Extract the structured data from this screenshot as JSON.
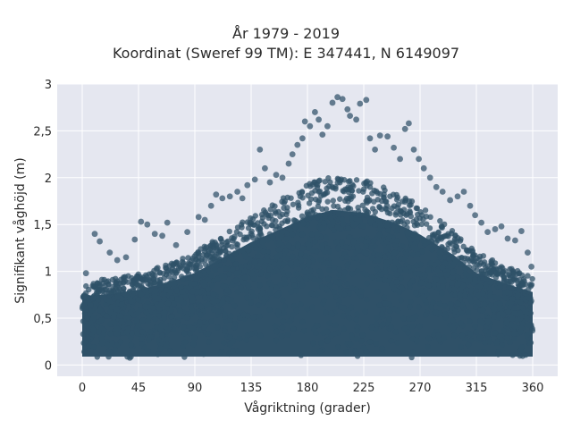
{
  "chart_data": {
    "type": "scatter",
    "title": "År 1979 - 2019",
    "subtitle": "Koordinat (Sweref 99 TM): E 347441, N 6149097",
    "xlabel": "Vågriktning (grader)",
    "ylabel": "Signifikant våghöjd (m)",
    "xlim": [
      -20,
      380
    ],
    "ylim": [
      -0.12,
      3.0
    ],
    "grid": true,
    "marker_color": "#2f5168",
    "background_color": "#e5e7f0",
    "x_ticks": [
      {
        "value": 0,
        "label": "0"
      },
      {
        "value": 45,
        "label": "45"
      },
      {
        "value": 90,
        "label": "90"
      },
      {
        "value": 135,
        "label": "135"
      },
      {
        "value": 180,
        "label": "180"
      },
      {
        "value": 225,
        "label": "225"
      },
      {
        "value": 270,
        "label": "270"
      },
      {
        "value": 315,
        "label": "315"
      },
      {
        "value": 360,
        "label": "360"
      }
    ],
    "y_ticks": [
      {
        "value": 0,
        "label": "0"
      },
      {
        "value": 0.5,
        "label": "0,5"
      },
      {
        "value": 1,
        "label": "1"
      },
      {
        "value": 1.5,
        "label": "1,5"
      },
      {
        "value": 2,
        "label": "2"
      },
      {
        "value": 2.5,
        "label": "2,5"
      },
      {
        "value": 3,
        "label": "3"
      }
    ],
    "envelope": {
      "description_points_x": [
        0,
        20,
        45,
        70,
        90,
        115,
        135,
        160,
        180,
        200,
        225,
        250,
        270,
        295,
        315,
        340,
        360
      ],
      "upper_dense_y": [
        0.9,
        0.92,
        0.98,
        1.08,
        1.2,
        1.42,
        1.6,
        1.78,
        1.93,
        2.02,
        1.98,
        1.85,
        1.7,
        1.45,
        1.2,
        1.05,
        0.95
      ],
      "lower_y": 0.05
    },
    "points": [
      {
        "x": 3,
        "y": 0.98
      },
      {
        "x": 10,
        "y": 1.4
      },
      {
        "x": 14,
        "y": 1.32
      },
      {
        "x": 22,
        "y": 1.2
      },
      {
        "x": 28,
        "y": 1.12
      },
      {
        "x": 35,
        "y": 1.15
      },
      {
        "x": 42,
        "y": 1.34
      },
      {
        "x": 47,
        "y": 1.53
      },
      {
        "x": 52,
        "y": 1.5
      },
      {
        "x": 58,
        "y": 1.4
      },
      {
        "x": 64,
        "y": 1.38
      },
      {
        "x": 68,
        "y": 1.52
      },
      {
        "x": 75,
        "y": 1.28
      },
      {
        "x": 84,
        "y": 1.42
      },
      {
        "x": 93,
        "y": 1.58
      },
      {
        "x": 98,
        "y": 1.55
      },
      {
        "x": 103,
        "y": 1.7
      },
      {
        "x": 107,
        "y": 1.82
      },
      {
        "x": 112,
        "y": 1.78
      },
      {
        "x": 118,
        "y": 1.8
      },
      {
        "x": 124,
        "y": 1.85
      },
      {
        "x": 128,
        "y": 1.78
      },
      {
        "x": 132,
        "y": 1.92
      },
      {
        "x": 138,
        "y": 1.98
      },
      {
        "x": 142,
        "y": 2.3
      },
      {
        "x": 146,
        "y": 2.1
      },
      {
        "x": 150,
        "y": 1.95
      },
      {
        "x": 155,
        "y": 2.03
      },
      {
        "x": 160,
        "y": 2.0
      },
      {
        "x": 165,
        "y": 2.15
      },
      {
        "x": 168,
        "y": 2.25
      },
      {
        "x": 172,
        "y": 2.35
      },
      {
        "x": 176,
        "y": 2.42
      },
      {
        "x": 178,
        "y": 2.6
      },
      {
        "x": 182,
        "y": 2.55
      },
      {
        "x": 186,
        "y": 2.7
      },
      {
        "x": 189,
        "y": 2.62
      },
      {
        "x": 192,
        "y": 2.46
      },
      {
        "x": 196,
        "y": 2.55
      },
      {
        "x": 200,
        "y": 2.8
      },
      {
        "x": 204,
        "y": 2.86
      },
      {
        "x": 208,
        "y": 2.84
      },
      {
        "x": 212,
        "y": 2.73
      },
      {
        "x": 214,
        "y": 2.66
      },
      {
        "x": 219,
        "y": 2.62
      },
      {
        "x": 222,
        "y": 2.79
      },
      {
        "x": 227,
        "y": 2.83
      },
      {
        "x": 230,
        "y": 2.42
      },
      {
        "x": 234,
        "y": 2.3
      },
      {
        "x": 238,
        "y": 2.45
      },
      {
        "x": 244,
        "y": 2.44
      },
      {
        "x": 249,
        "y": 2.32
      },
      {
        "x": 254,
        "y": 2.2
      },
      {
        "x": 258,
        "y": 2.52
      },
      {
        "x": 261,
        "y": 2.58
      },
      {
        "x": 265,
        "y": 2.3
      },
      {
        "x": 269,
        "y": 2.2
      },
      {
        "x": 273,
        "y": 2.1
      },
      {
        "x": 278,
        "y": 2.0
      },
      {
        "x": 283,
        "y": 1.9
      },
      {
        "x": 288,
        "y": 1.85
      },
      {
        "x": 294,
        "y": 1.76
      },
      {
        "x": 300,
        "y": 1.8
      },
      {
        "x": 305,
        "y": 1.85
      },
      {
        "x": 310,
        "y": 1.7
      },
      {
        "x": 314,
        "y": 1.6
      },
      {
        "x": 319,
        "y": 1.52
      },
      {
        "x": 324,
        "y": 1.42
      },
      {
        "x": 330,
        "y": 1.45
      },
      {
        "x": 335,
        "y": 1.48
      },
      {
        "x": 340,
        "y": 1.35
      },
      {
        "x": 346,
        "y": 1.33
      },
      {
        "x": 351,
        "y": 1.43
      },
      {
        "x": 356,
        "y": 1.2
      },
      {
        "x": 359,
        "y": 1.05
      }
    ]
  }
}
